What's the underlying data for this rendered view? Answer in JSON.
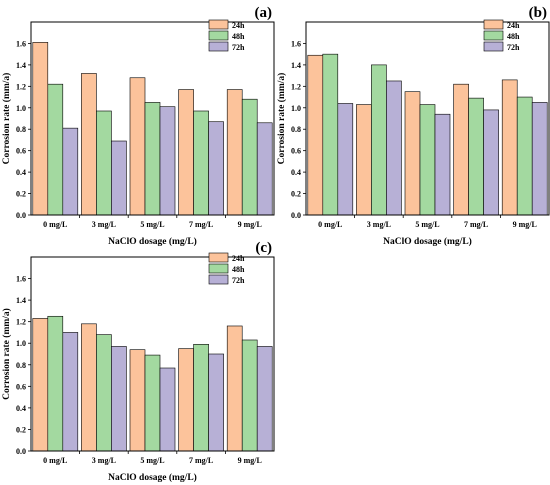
{
  "colors": {
    "24h": "#fcc39b",
    "48h": "#a3d9a0",
    "72h": "#b7b0d6",
    "stroke": "#000000"
  },
  "chart_data": [
    {
      "type": "bar",
      "panel_label": "(a)",
      "categories": [
        "0 mg/L",
        "3 mg/L",
        "5 mg/L",
        "7 mg/L",
        "9 mg/L"
      ],
      "series": [
        {
          "name": "24h",
          "values": [
            1.61,
            1.32,
            1.28,
            1.17,
            1.17
          ]
        },
        {
          "name": "48h",
          "values": [
            1.22,
            0.97,
            1.05,
            0.97,
            1.08
          ]
        },
        {
          "name": "72h",
          "values": [
            0.81,
            0.69,
            1.01,
            0.87,
            0.86
          ]
        }
      ],
      "xlabel": "NaClO dosage (mg/L)",
      "ylabel": "Corrosion rate (mm/a)",
      "ylim": [
        0,
        1.8
      ],
      "yticks": [
        "0.0",
        "0.2",
        "0.4",
        "0.6",
        "0.8",
        "1.0",
        "1.2",
        "1.4",
        "1.6"
      ],
      "legend_position": "top-right",
      "grid": false
    },
    {
      "type": "bar",
      "panel_label": "(b)",
      "categories": [
        "0 mg/L",
        "3 mg/L",
        "5 mg/L",
        "7 mg/L",
        "9 mg/L"
      ],
      "series": [
        {
          "name": "24h",
          "values": [
            1.49,
            1.03,
            1.15,
            1.22,
            1.26
          ]
        },
        {
          "name": "48h",
          "values": [
            1.5,
            1.4,
            1.03,
            1.09,
            1.1
          ]
        },
        {
          "name": "72h",
          "values": [
            1.04,
            1.25,
            0.94,
            0.98,
            1.05
          ]
        }
      ],
      "xlabel": "NaClO dosage (mg/L)",
      "ylabel": "Corrosion rate (mm/a)",
      "ylim": [
        0,
        1.8
      ],
      "yticks": [
        "0.0",
        "0.2",
        "0.4",
        "0.6",
        "0.8",
        "1.0",
        "1.2",
        "1.4",
        "1.6"
      ],
      "legend_position": "top-right",
      "grid": false
    },
    {
      "type": "bar",
      "panel_label": "(c)",
      "categories": [
        "0 mg/L",
        "3 mg/L",
        "5 mg/L",
        "7 mg/L",
        "9 mg/L"
      ],
      "series": [
        {
          "name": "24h",
          "values": [
            1.23,
            1.18,
            0.94,
            0.95,
            1.16
          ]
        },
        {
          "name": "48h",
          "values": [
            1.25,
            1.08,
            0.89,
            0.99,
            1.03
          ]
        },
        {
          "name": "72h",
          "values": [
            1.1,
            0.97,
            0.77,
            0.9,
            0.97
          ]
        }
      ],
      "xlabel": "NaClO dosage (mg/L)",
      "ylabel": "Corrosion rate (mm/a)",
      "ylim": [
        0,
        1.8
      ],
      "yticks": [
        "0.0",
        "0.2",
        "0.4",
        "0.6",
        "0.8",
        "1.0",
        "1.2",
        "1.4",
        "1.6"
      ],
      "legend_position": "top-right",
      "grid": false
    }
  ]
}
